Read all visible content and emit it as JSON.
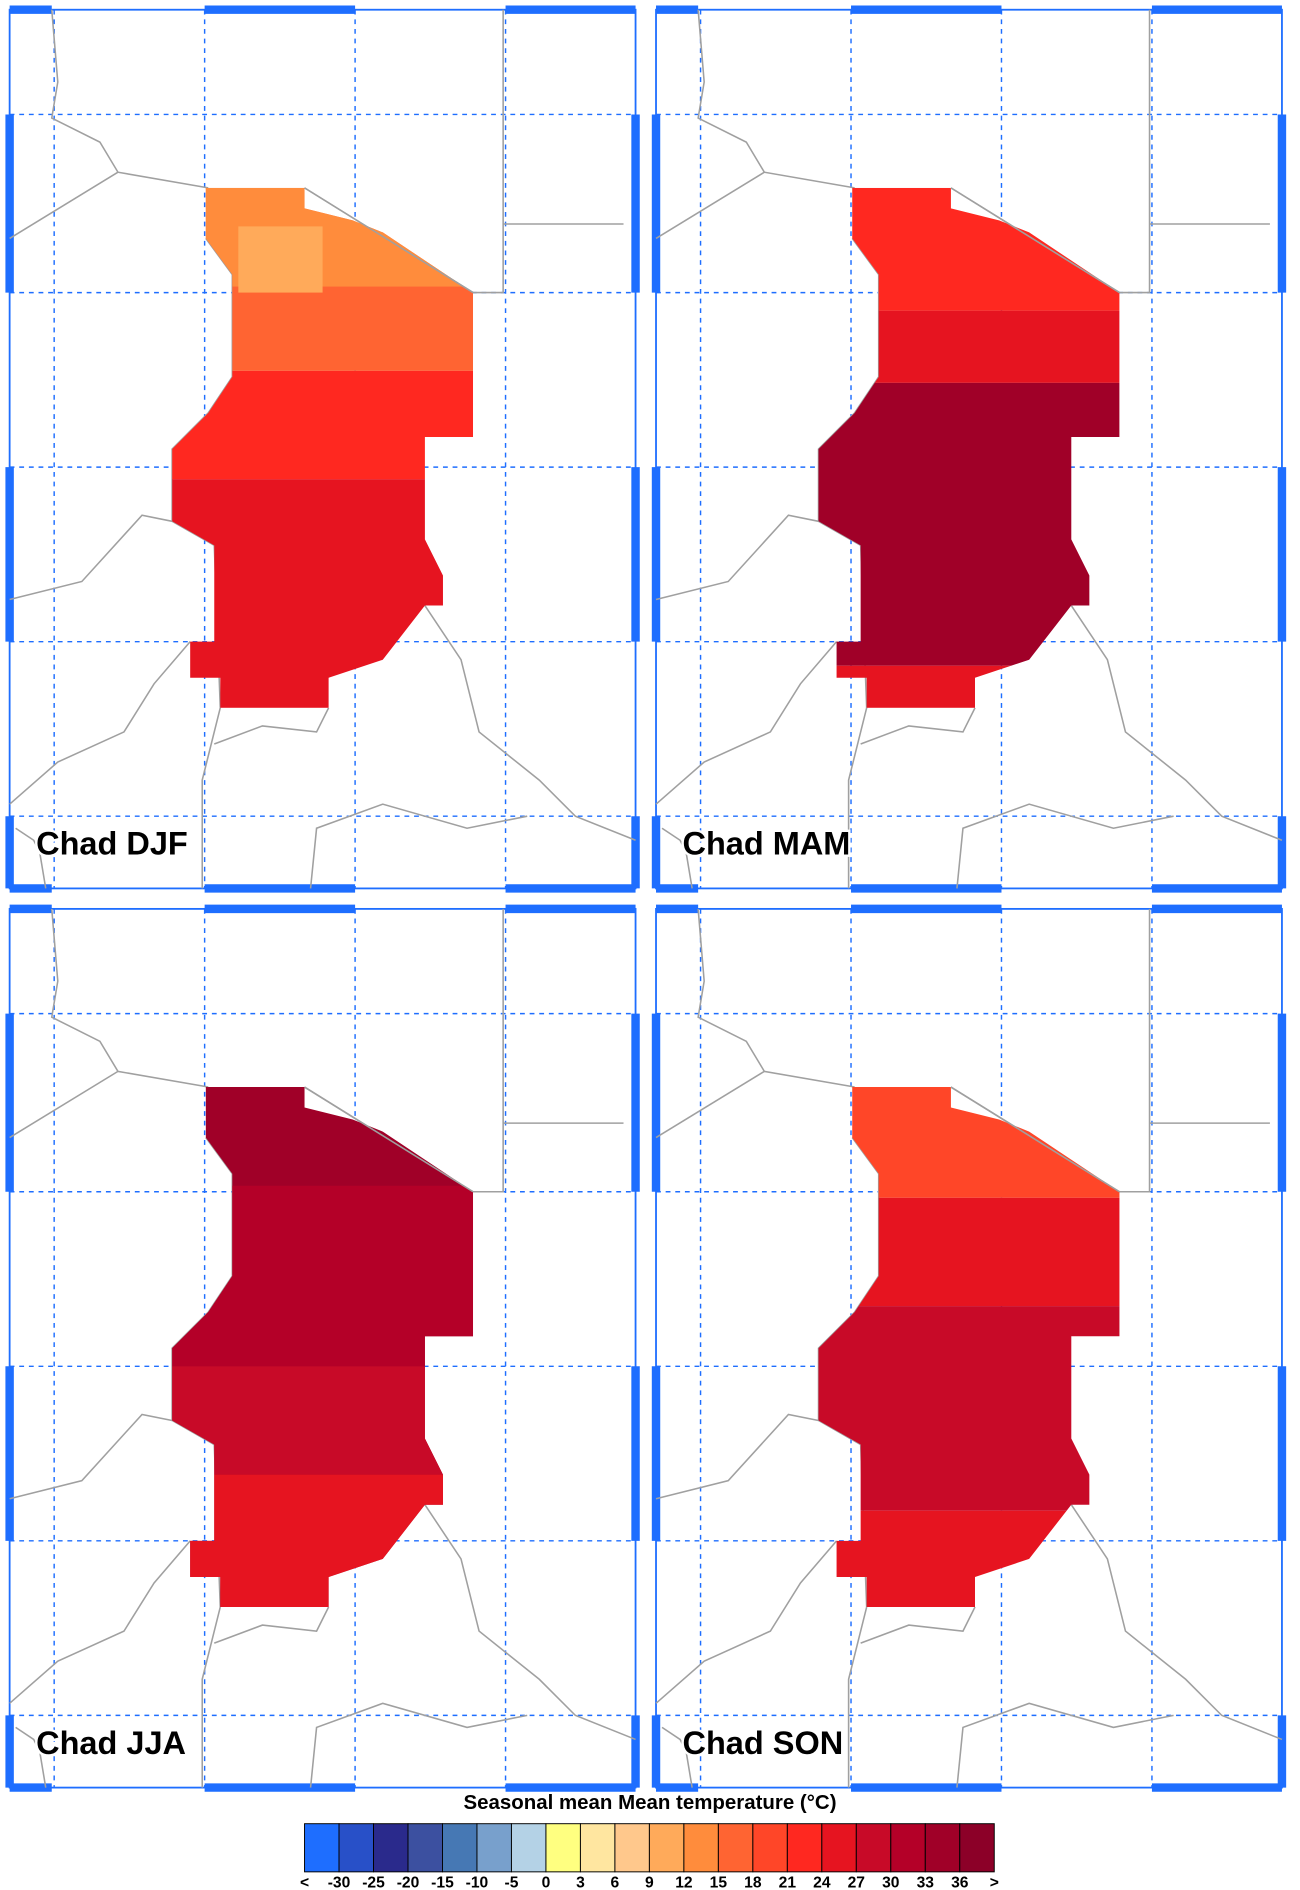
{
  "panels": [
    {
      "title": "Chad DJF"
    },
    {
      "title": "Chad MAM"
    },
    {
      "title": "Chad JJA"
    },
    {
      "title": "Chad SON"
    }
  ],
  "colorbar": {
    "title": "Seasonal mean Mean temperature (°C)",
    "labels": [
      "<",
      "-30",
      "-25",
      "-20",
      "-15",
      "-10",
      "-5",
      "0",
      "3",
      "6",
      "9",
      "12",
      "15",
      "18",
      "21",
      "24",
      "27",
      "30",
      "33",
      "36",
      ">"
    ],
    "colors": [
      "#1e6eff",
      "#2850c8",
      "#2a2a8c",
      "#3c50a0",
      "#4678b4",
      "#78a0cc",
      "#b4d2e6",
      "#ffff80",
      "#ffe6a0",
      "#ffc88c",
      "#ffaa5a",
      "#ff8c3c",
      "#ff6432",
      "#ff4628",
      "#ff2820",
      "#e61420",
      "#c80a28",
      "#b40028",
      "#a00028",
      "#8c0028"
    ]
  }
}
